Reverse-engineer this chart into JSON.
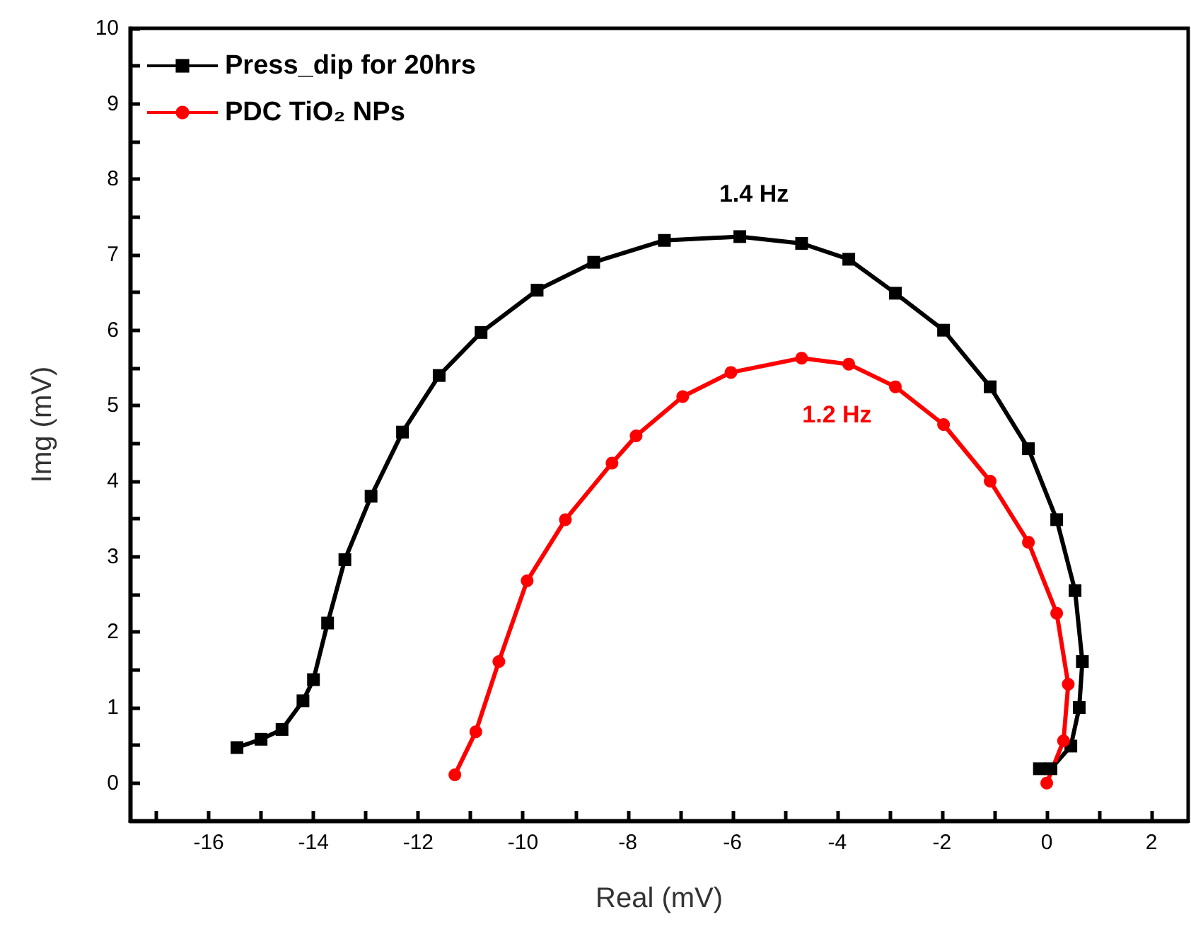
{
  "chart_data": {
    "type": "line",
    "xlabel": "Real (mV)",
    "ylabel": "Img (mV)",
    "xlim": [
      -17.5,
      2.7
    ],
    "ylim": [
      -0.5,
      10
    ],
    "xticks": [
      {
        "value": -17,
        "label": null
      },
      -16,
      {
        "value": -15,
        "label": null
      },
      -14,
      {
        "value": -13,
        "label": null
      },
      -12,
      {
        "value": -11,
        "label": null
      },
      -10,
      {
        "value": -9,
        "label": null
      },
      -8,
      {
        "value": -7,
        "label": null
      },
      -6,
      {
        "value": -5,
        "label": null
      },
      -4,
      {
        "value": -3,
        "label": null
      },
      -2,
      {
        "value": -1,
        "label": null
      },
      0,
      {
        "value": 1,
        "label": null
      },
      2
    ],
    "yticks": [
      0,
      {
        "value": 0.5,
        "label": null
      },
      1,
      {
        "value": 1.5,
        "label": null
      },
      2,
      {
        "value": 2.5,
        "label": null
      },
      3,
      {
        "value": 3.5,
        "label": null
      },
      4,
      {
        "value": 4.5,
        "label": null
      },
      5,
      {
        "value": 5.5,
        "label": null
      },
      6,
      {
        "value": 6.5,
        "label": null
      },
      7,
      {
        "value": 7.5,
        "label": null
      },
      8,
      {
        "value": 8.5,
        "label": null
      },
      9,
      {
        "value": 9.5,
        "label": null
      },
      10
    ],
    "grid": false,
    "legend": "top left",
    "annotations": [
      "1.4 Hz",
      "1.2 Hz"
    ],
    "series": [
      {
        "name": "Press_dip for 20hrs",
        "color": "#000000",
        "marker": "square",
        "x": [
          -15.46,
          -15.0,
          -14.6,
          -14.2,
          -14.0,
          -13.73,
          -13.4,
          -12.9,
          -12.3,
          -11.6,
          -10.8,
          -9.73,
          -8.65,
          -7.3,
          -5.86,
          -4.68,
          -3.78,
          -2.89,
          -1.97,
          -1.08,
          -0.35,
          0.19,
          0.54,
          0.68,
          0.62,
          0.46,
          0.08,
          -0.14
        ],
        "values": [
          0.47,
          0.58,
          0.71,
          1.09,
          1.37,
          2.12,
          2.96,
          3.8,
          4.65,
          5.4,
          5.97,
          6.53,
          6.9,
          7.19,
          7.24,
          7.15,
          6.94,
          6.49,
          6.0,
          5.25,
          4.43,
          3.49,
          2.55,
          1.61,
          1.0,
          0.49,
          0.19,
          0.19
        ]
      },
      {
        "name": "PDC TiO₂ NPs",
        "color": "#ff0000",
        "marker": "circle",
        "x": [
          -11.3,
          -10.9,
          -10.46,
          -9.92,
          -9.19,
          -8.3,
          -7.84,
          -6.95,
          -6.03,
          -4.68,
          -3.78,
          -2.89,
          -1.97,
          -1.08,
          -0.35,
          0.19,
          0.41,
          0.32,
          0.0
        ],
        "values": [
          0.11,
          0.68,
          1.61,
          2.68,
          3.49,
          4.24,
          4.6,
          5.12,
          5.44,
          5.63,
          5.55,
          5.25,
          4.75,
          4.0,
          3.19,
          2.25,
          1.31,
          0.56,
          0.0
        ]
      }
    ]
  }
}
